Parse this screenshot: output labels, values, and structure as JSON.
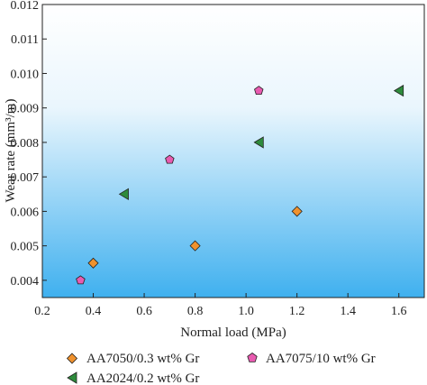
{
  "chart_data": {
    "type": "scatter",
    "xlabel": "Normal load (MPa)",
    "ylabel": "Wear rate (mm³/m)",
    "xlim": [
      0.2,
      1.7
    ],
    "ylim": [
      0.0035,
      0.012
    ],
    "x_ticks": [
      0.2,
      0.4,
      0.6,
      0.8,
      1.0,
      1.2,
      1.4,
      1.6
    ],
    "x_tick_labels": [
      "0.2",
      "0.4",
      "0.6",
      "0.8",
      "1.0",
      "1.2",
      "1.4",
      "1.6"
    ],
    "y_ticks": [
      0.004,
      0.005,
      0.006,
      0.007,
      0.008,
      0.009,
      0.01,
      0.011,
      0.012
    ],
    "y_tick_labels": [
      "0.004",
      "0.005",
      "0.006",
      "0.007",
      "0.008",
      "0.009",
      "0.010",
      "0.011",
      "0.012"
    ],
    "grid": false,
    "background": "gradient white (top) to sky blue (bottom)",
    "legend_position": "bottom",
    "series": [
      {
        "name": "AA7050/0.3 wt% Gr",
        "marker": "diamond",
        "color": "#f0922e",
        "points": [
          {
            "x": 0.4,
            "y": 0.0045
          },
          {
            "x": 0.8,
            "y": 0.005
          },
          {
            "x": 1.2,
            "y": 0.006
          }
        ]
      },
      {
        "name": "AA7075/10 wt% Gr",
        "marker": "pentagon",
        "color": "#e85bb0",
        "points": [
          {
            "x": 0.35,
            "y": 0.004
          },
          {
            "x": 0.7,
            "y": 0.0075
          },
          {
            "x": 1.05,
            "y": 0.0095
          }
        ]
      },
      {
        "name": "AA2024/0.2 wt% Gr",
        "marker": "triangle-left",
        "color": "#2e8b3c",
        "points": [
          {
            "x": 0.52,
            "y": 0.0065
          },
          {
            "x": 1.05,
            "y": 0.008
          },
          {
            "x": 1.6,
            "y": 0.0095
          }
        ]
      }
    ]
  }
}
